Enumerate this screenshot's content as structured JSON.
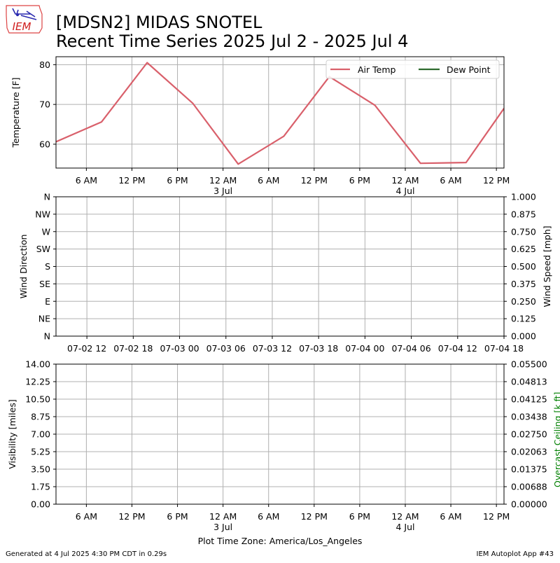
{
  "header": {
    "logo_text": "IEM",
    "title_line1": "[MDSN2] MIDAS SNOTEL",
    "title_line2": "Recent Time Series 2025 Jul 2 - 2025 Jul 4"
  },
  "footer": {
    "generated": "Generated at 4 Jul 2025 4:30 PM CDT in 0.29s",
    "app": "IEM Autoplot App #43",
    "timezone_label": "Plot Time Zone: America/Los_Angeles"
  },
  "colors": {
    "air_temp": "#d9606b",
    "dew_point": "#2e6b2e",
    "ceiling_label": "#008000",
    "grid": "#b0b0b0"
  },
  "chart_data": [
    {
      "type": "line",
      "ylabel": "Temperature [F]",
      "ylim": [
        54,
        82
      ],
      "yticks": [
        60,
        70,
        80
      ],
      "x_start": "2025-07-02 02:00",
      "x_end": "2025-07-04 13:00",
      "xticks": [
        {
          "at": "2025-07-02 06:00",
          "label": "6 AM"
        },
        {
          "at": "2025-07-02 12:00",
          "label": "12 PM"
        },
        {
          "at": "2025-07-02 18:00",
          "label": "6 PM"
        },
        {
          "at": "2025-07-03 00:00",
          "label": "12 AM",
          "sub": "3 Jul"
        },
        {
          "at": "2025-07-03 06:00",
          "label": "6 AM"
        },
        {
          "at": "2025-07-03 12:00",
          "label": "12 PM"
        },
        {
          "at": "2025-07-03 18:00",
          "label": "6 PM"
        },
        {
          "at": "2025-07-04 00:00",
          "label": "12 AM",
          "sub": "4 Jul"
        },
        {
          "at": "2025-07-04 06:00",
          "label": "6 AM"
        },
        {
          "at": "2025-07-04 12:00",
          "label": "12 PM"
        }
      ],
      "legend": [
        "Air Temp",
        "Dew Point"
      ],
      "legend_position": "top-right",
      "grid": true,
      "series": [
        {
          "name": "Air Temp",
          "x": [
            "2025-07-02 02:00",
            "2025-07-02 08:00",
            "2025-07-02 14:00",
            "2025-07-02 20:00",
            "2025-07-03 02:00",
            "2025-07-03 08:00",
            "2025-07-03 14:00",
            "2025-07-03 20:00",
            "2025-07-04 02:00",
            "2025-07-04 08:00",
            "2025-07-04 13:00"
          ],
          "values": [
            60.6,
            65.6,
            80.5,
            70.3,
            55.0,
            62.0,
            77.0,
            69.8,
            55.2,
            55.4,
            69.0
          ]
        },
        {
          "name": "Dew Point",
          "x": [],
          "values": []
        }
      ]
    },
    {
      "type": "line",
      "ylabel": "Wind Direction",
      "y2label": "Wind Speed [mph]",
      "yticks": [
        "N",
        "NE",
        "E",
        "SE",
        "S",
        "SW",
        "W",
        "NW",
        "N"
      ],
      "y2ticks": [
        "0.000",
        "0.125",
        "0.250",
        "0.375",
        "0.500",
        "0.625",
        "0.750",
        "0.875",
        "1.000"
      ],
      "ylim": [
        0,
        360
      ],
      "y2lim": [
        0,
        1
      ],
      "x_start": "2025-07-02 08:00",
      "x_end": "2025-07-04 18:00",
      "xticks": [
        {
          "at": "2025-07-02 12:00",
          "label": "07-02 12"
        },
        {
          "at": "2025-07-02 18:00",
          "label": "07-02 18"
        },
        {
          "at": "2025-07-03 00:00",
          "label": "07-03 00"
        },
        {
          "at": "2025-07-03 06:00",
          "label": "07-03 06"
        },
        {
          "at": "2025-07-03 12:00",
          "label": "07-03 12"
        },
        {
          "at": "2025-07-03 18:00",
          "label": "07-03 18"
        },
        {
          "at": "2025-07-04 00:00",
          "label": "07-04 00"
        },
        {
          "at": "2025-07-04 06:00",
          "label": "07-04 06"
        },
        {
          "at": "2025-07-04 12:00",
          "label": "07-04 12"
        },
        {
          "at": "2025-07-04 18:00",
          "label": "07-04 18"
        }
      ],
      "grid": true,
      "series": []
    },
    {
      "type": "line",
      "ylabel": "Visibility [miles]",
      "y2label": "Overcast Ceiling [k ft]",
      "yticks": [
        "0.00",
        "1.75",
        "3.50",
        "5.25",
        "7.00",
        "8.75",
        "10.50",
        "12.25",
        "14.00"
      ],
      "y2ticks": [
        "0.00000",
        "0.00688",
        "0.01375",
        "0.02063",
        "0.02750",
        "0.03438",
        "0.04125",
        "0.04813",
        "0.05500"
      ],
      "ylim": [
        0,
        14
      ],
      "y2lim": [
        0,
        0.055
      ],
      "x_start": "2025-07-02 02:00",
      "x_end": "2025-07-04 13:00",
      "xticks": [
        {
          "at": "2025-07-02 06:00",
          "label": "6 AM"
        },
        {
          "at": "2025-07-02 12:00",
          "label": "12 PM"
        },
        {
          "at": "2025-07-02 18:00",
          "label": "6 PM"
        },
        {
          "at": "2025-07-03 00:00",
          "label": "12 AM",
          "sub": "3 Jul"
        },
        {
          "at": "2025-07-03 06:00",
          "label": "6 AM"
        },
        {
          "at": "2025-07-03 12:00",
          "label": "12 PM"
        },
        {
          "at": "2025-07-03 18:00",
          "label": "6 PM"
        },
        {
          "at": "2025-07-04 00:00",
          "label": "12 AM",
          "sub": "4 Jul"
        },
        {
          "at": "2025-07-04 06:00",
          "label": "6 AM"
        },
        {
          "at": "2025-07-04 12:00",
          "label": "12 PM"
        }
      ],
      "grid": true,
      "series": []
    }
  ]
}
